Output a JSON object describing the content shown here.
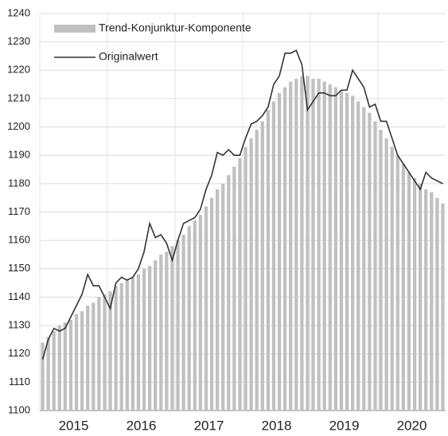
{
  "chart_data": {
    "type": "combo",
    "categories": [
      "2015",
      null,
      null,
      null,
      null,
      null,
      null,
      null,
      null,
      null,
      null,
      null,
      "2016",
      null,
      null,
      null,
      null,
      null,
      null,
      null,
      null,
      null,
      null,
      null,
      "2017",
      null,
      null,
      null,
      null,
      null,
      null,
      null,
      null,
      null,
      null,
      null,
      "2018",
      null,
      null,
      null,
      null,
      null,
      null,
      null,
      null,
      null,
      null,
      null,
      "2019",
      null,
      null,
      null,
      null,
      null,
      null,
      null,
      null,
      null,
      null,
      null,
      "2020",
      null,
      null,
      null,
      null,
      null,
      null,
      null,
      null,
      null,
      null,
      null
    ],
    "series": [
      {
        "name": "Trend-Konjunktur-Komponente",
        "type": "bar",
        "color": "#c0c0c0",
        "values": [
          1124,
          1126,
          1128,
          1130,
          1131,
          1132,
          1134,
          1135,
          1137,
          1138,
          1140,
          1141,
          1142,
          1144,
          1145,
          1146,
          1147,
          1148,
          1150,
          1151,
          1153,
          1155,
          1156,
          1158,
          1160,
          1162,
          1165,
          1167,
          1169,
          1172,
          1175,
          1178,
          1180,
          1183,
          1186,
          1189,
          1193,
          1196,
          1199,
          1202,
          1206,
          1209,
          1212,
          1214,
          1216,
          1217,
          1218,
          1218,
          1217,
          1217,
          1216,
          1215,
          1214,
          1213,
          1212,
          1211,
          1209,
          1207,
          1205,
          1202,
          1199,
          1196,
          1193,
          1190,
          1187,
          1184,
          1182,
          1180,
          1178,
          1177,
          1175,
          1173
        ]
      },
      {
        "name": "Originalwert",
        "type": "line",
        "color": "#333333",
        "values": [
          1118,
          1125,
          1129,
          1128,
          1129,
          1133,
          1137,
          1141,
          1148,
          1144,
          1144,
          1140,
          1136,
          1145,
          1147,
          1146,
          1147,
          1150,
          1156,
          1166,
          1161,
          1162,
          1159,
          1153,
          1160,
          1166,
          1167,
          1168,
          1171,
          1178,
          1183,
          1191,
          1190,
          1192,
          1190,
          1190,
          1196,
          1201,
          1202,
          1204,
          1207,
          1215,
          1218,
          1226,
          1226,
          1227,
          1222,
          1206,
          1209,
          1212,
          1212,
          1211,
          1211,
          1213,
          1213,
          1220,
          1217,
          1214,
          1207,
          1208,
          1202,
          1202,
          1196,
          1190,
          1187,
          1184,
          1181,
          1178,
          1184,
          1182,
          1181,
          1180
        ]
      }
    ],
    "ylim": [
      1100,
      1240
    ],
    "yticks": [
      1100,
      1110,
      1120,
      1130,
      1140,
      1150,
      1160,
      1170,
      1180,
      1190,
      1200,
      1210,
      1220,
      1230,
      1240
    ],
    "grid": true,
    "legend": "top-left"
  }
}
